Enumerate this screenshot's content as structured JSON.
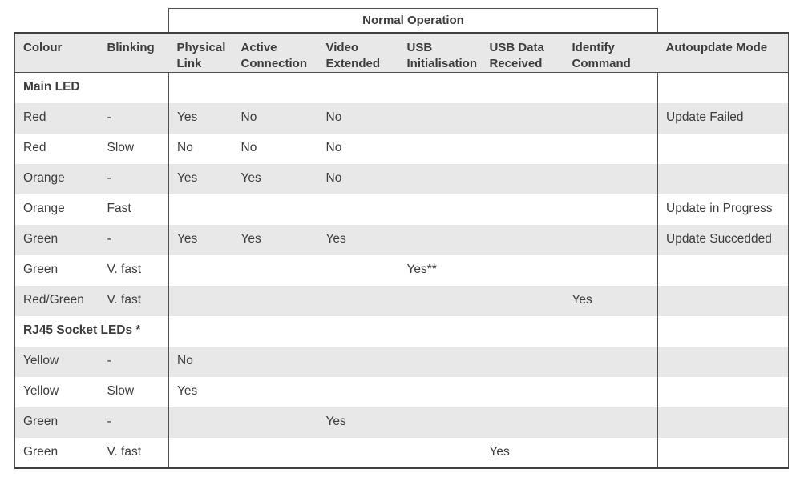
{
  "colors": {
    "page_bg": "#ffffff",
    "header_bg": "#e8e8e8",
    "shaded_row_bg": "#e8e8e8",
    "border": "#4d4d4d",
    "border_heavy": "#3f3f3f",
    "text": "#3c3c3c"
  },
  "table": {
    "span_header": "Normal Operation",
    "columns": [
      "Colour",
      "Blinking",
      "Physical Link",
      "Active Connection",
      "Video Extended",
      "USB Initialisation",
      "USB Data Received",
      "Identify Command",
      "Autoupdate Mode"
    ],
    "rows": [
      {
        "type": "section",
        "label": "Main LED"
      },
      {
        "type": "data",
        "cells": [
          "Red",
          "-",
          "Yes",
          "No",
          "No",
          "",
          "",
          "",
          "Update Failed"
        ]
      },
      {
        "type": "data",
        "cells": [
          "Red",
          "Slow",
          "No",
          "No",
          "No",
          "",
          "",
          "",
          ""
        ]
      },
      {
        "type": "data",
        "cells": [
          "Orange",
          "-",
          "Yes",
          "Yes",
          "No",
          "",
          "",
          "",
          ""
        ]
      },
      {
        "type": "data",
        "cells": [
          "Orange",
          "Fast",
          "",
          "",
          "",
          "",
          "",
          "",
          "Update in Progress"
        ]
      },
      {
        "type": "data",
        "cells": [
          "Green",
          "-",
          "Yes",
          "Yes",
          "Yes",
          "",
          "",
          "",
          "Update Succedded"
        ]
      },
      {
        "type": "data",
        "cells": [
          "Green",
          "V. fast",
          "",
          "",
          "",
          "Yes**",
          "",
          "",
          ""
        ]
      },
      {
        "type": "data",
        "cells": [
          "Red/Green",
          "V. fast",
          "",
          "",
          "",
          "",
          "",
          "Yes",
          ""
        ]
      },
      {
        "type": "section",
        "label": "RJ45 Socket LEDs *"
      },
      {
        "type": "data",
        "cells": [
          "Yellow",
          "-",
          "No",
          "",
          "",
          "",
          "",
          "",
          ""
        ]
      },
      {
        "type": "data",
        "cells": [
          "Yellow",
          "Slow",
          "Yes",
          "",
          "",
          "",
          "",
          "",
          ""
        ]
      },
      {
        "type": "data",
        "cells": [
          "Green",
          "-",
          "",
          "",
          "Yes",
          "",
          "",
          "",
          ""
        ]
      },
      {
        "type": "data",
        "cells": [
          "Green",
          "V. fast",
          "",
          "",
          "",
          "",
          "Yes",
          "",
          ""
        ]
      }
    ]
  }
}
